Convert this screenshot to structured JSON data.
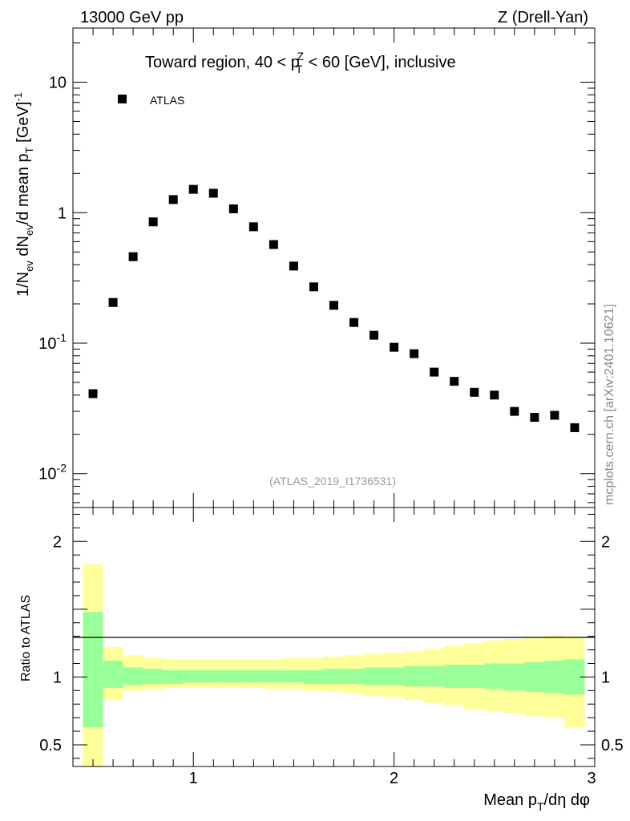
{
  "header": {
    "left": "13000 GeV pp",
    "right": "Z (Drell-Yan)"
  },
  "watermark": "(ATLAS_2019_I1736531)",
  "side_label": "mcplots.cern.ch [arXiv:2401.10621]",
  "colors": {
    "band_outer": "#ffff99",
    "band_inner": "#99ff99",
    "marker": "#000000"
  },
  "chart_data": [
    {
      "type": "scatter",
      "panel": "main",
      "title_parts": {
        "pre": "Toward region, 40 < p",
        "sub": "T",
        "sup": "Z",
        "post": " < 60 [GeV], inclusive"
      },
      "ylabel_parts": [
        "1/N",
        "ev",
        " dN",
        "ev",
        "/d mean p",
        "T",
        " [GeV]",
        "-1"
      ],
      "yscale": "log",
      "ylim": [
        0.0055,
        26
      ],
      "xlim": [
        0.4,
        3.0
      ],
      "legend": {
        "label": "ATLAS",
        "position": "top-left"
      },
      "ytick_labels": [
        {
          "value": 0.01,
          "base": "10",
          "exp": "-2"
        },
        {
          "value": 0.1,
          "base": "10",
          "exp": "-1"
        },
        {
          "value": 1,
          "label": "1"
        },
        {
          "value": 10,
          "label": "10"
        }
      ],
      "series": [
        {
          "name": "ATLAS",
          "x": [
            0.5,
            0.6,
            0.7,
            0.8,
            0.9,
            1.0,
            1.1,
            1.2,
            1.3,
            1.4,
            1.5,
            1.6,
            1.7,
            1.8,
            1.9,
            2.0,
            2.1,
            2.2,
            2.3,
            2.4,
            2.5,
            2.6,
            2.7,
            2.8,
            2.9
          ],
          "y": [
            0.041,
            0.205,
            0.46,
            0.85,
            1.26,
            1.51,
            1.41,
            1.07,
            0.78,
            0.57,
            0.39,
            0.27,
            0.195,
            0.144,
            0.115,
            0.093,
            0.083,
            0.06,
            0.051,
            0.042,
            0.04,
            0.03,
            0.027,
            0.028,
            0.0225
          ]
        }
      ]
    },
    {
      "type": "area",
      "panel": "ratio",
      "ylabel": "Ratio to ATLAS",
      "xlabel_parts": [
        "Mean p",
        "T",
        "/dη dφ"
      ],
      "ylim": [
        0.34,
        2.25
      ],
      "xlim": [
        0.4,
        3.0
      ],
      "ytick_labels": [
        {
          "value": 0.5,
          "label": "0.5"
        },
        {
          "value": 1,
          "label": "1"
        },
        {
          "value": 2,
          "label": "2"
        }
      ],
      "xtick_labels": [
        {
          "value": 1,
          "label": "1"
        },
        {
          "value": 2,
          "label": "2"
        },
        {
          "value": 3,
          "label": "3"
        }
      ],
      "bin_edges": [
        0.45,
        0.55,
        0.65,
        0.75,
        0.85,
        0.95,
        1.05,
        1.15,
        1.25,
        1.35,
        1.45,
        1.55,
        1.65,
        1.75,
        1.85,
        1.95,
        2.05,
        2.15,
        2.25,
        2.35,
        2.45,
        2.55,
        2.65,
        2.75,
        2.85,
        2.95
      ],
      "inner_band": {
        "upper": [
          1.48,
          1.12,
          1.07,
          1.06,
          1.05,
          1.05,
          1.05,
          1.05,
          1.05,
          1.05,
          1.05,
          1.05,
          1.06,
          1.06,
          1.07,
          1.07,
          1.08,
          1.08,
          1.09,
          1.09,
          1.1,
          1.1,
          1.11,
          1.12,
          1.13
        ],
        "lower": [
          0.63,
          0.92,
          0.94,
          0.95,
          0.95,
          0.96,
          0.96,
          0.96,
          0.96,
          0.96,
          0.96,
          0.95,
          0.95,
          0.95,
          0.94,
          0.94,
          0.93,
          0.93,
          0.92,
          0.92,
          0.91,
          0.9,
          0.89,
          0.88,
          0.87
        ]
      },
      "outer_band": {
        "upper": [
          1.83,
          1.22,
          1.16,
          1.14,
          1.13,
          1.13,
          1.13,
          1.13,
          1.13,
          1.13,
          1.14,
          1.14,
          1.15,
          1.16,
          1.17,
          1.18,
          1.19,
          1.21,
          1.23,
          1.25,
          1.27,
          1.28,
          1.29,
          1.31,
          1.3
        ],
        "lower": [
          0.34,
          0.83,
          0.9,
          0.91,
          0.92,
          0.92,
          0.92,
          0.92,
          0.92,
          0.91,
          0.91,
          0.9,
          0.89,
          0.88,
          0.86,
          0.85,
          0.83,
          0.81,
          0.79,
          0.76,
          0.75,
          0.73,
          0.71,
          0.7,
          0.63
        ]
      }
    }
  ]
}
